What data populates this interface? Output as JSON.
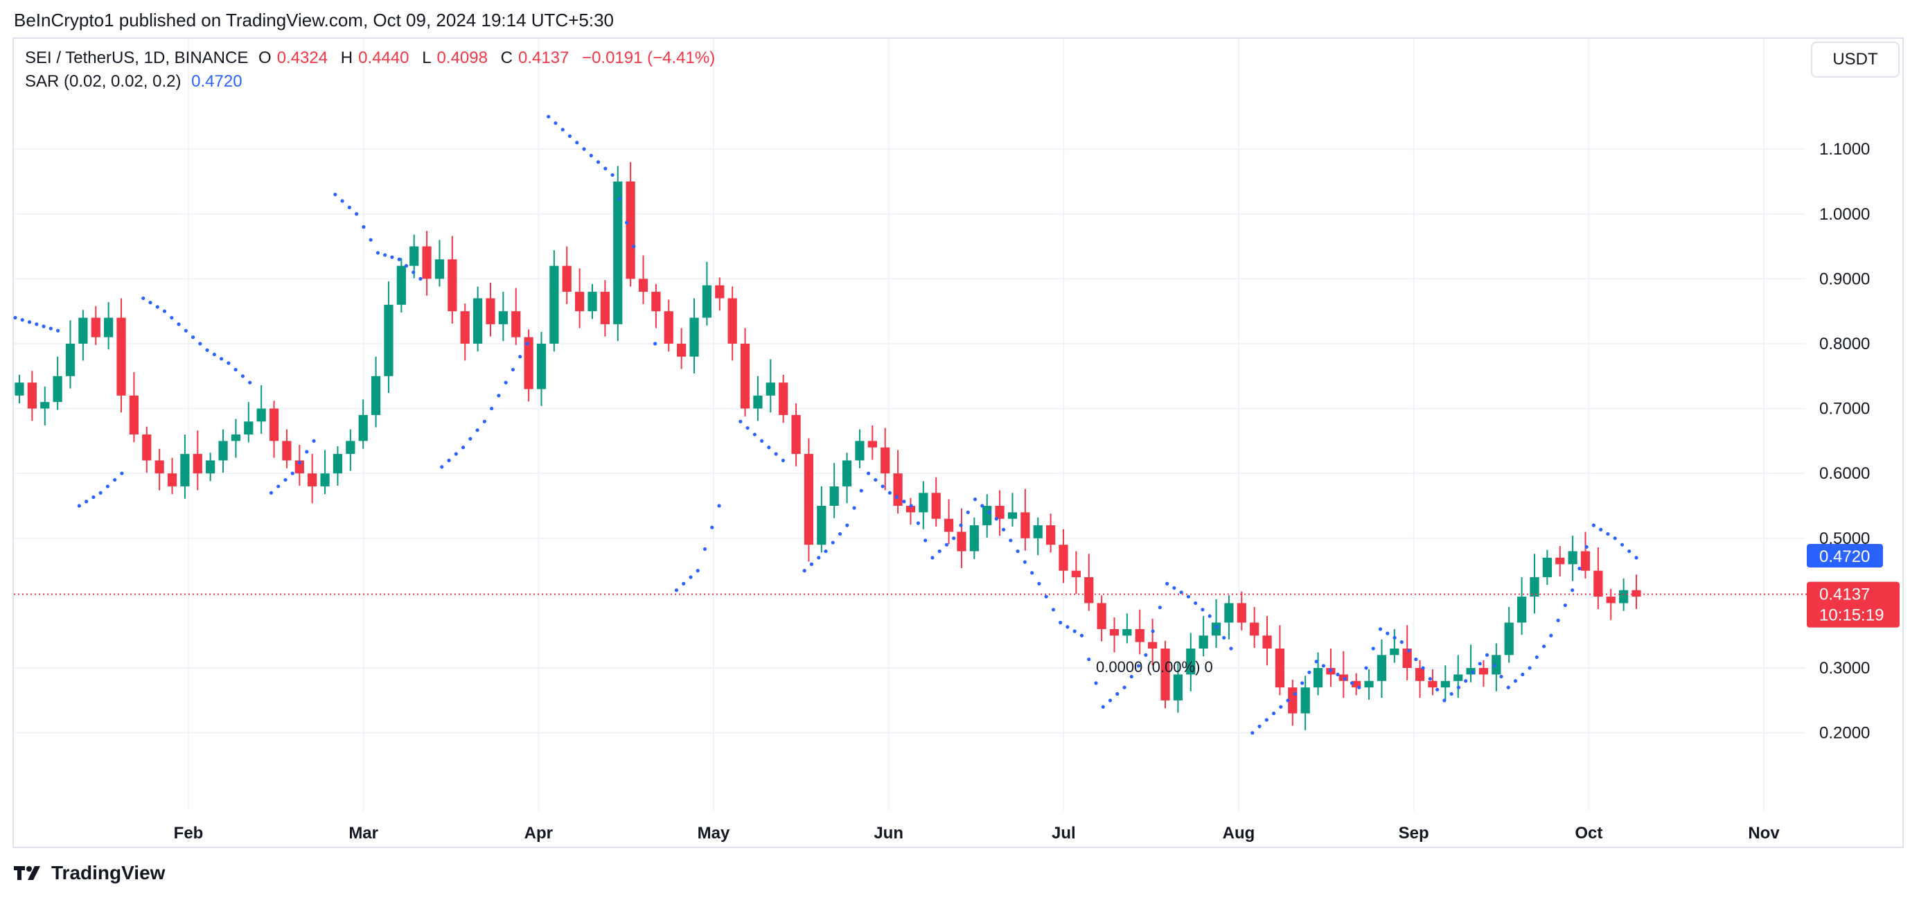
{
  "header": {
    "publisher_line": "BeInCrypto1 published on TradingView.com, Oct 09, 2024 19:14 UTC+5:30"
  },
  "legend": {
    "symbol_line": "SEI / TetherUS, 1D, BINANCE",
    "o_label": "O",
    "o_value": "0.4324",
    "h_label": "H",
    "h_value": "0.4440",
    "l_label": "L",
    "l_value": "0.4098",
    "c_label": "C",
    "c_value": "0.4137",
    "change": "−0.0191 (−4.41%)",
    "sar_label": "SAR (0.02, 0.02, 0.2)",
    "sar_value": "0.4720"
  },
  "currency_button": "USDT",
  "footer": {
    "brand": "TradingView"
  },
  "colors": {
    "up": "#089981",
    "down": "#f23645",
    "sar": "#2962ff",
    "grid": "#f0f3fa",
    "price_line": "#f23645"
  },
  "chart_data": {
    "type": "candlestick",
    "symbol": "SEI / TetherUS",
    "interval": "1D",
    "exchange": "BINANCE",
    "x_labels": [
      "Feb",
      "Mar",
      "Apr",
      "May",
      "Jun",
      "Jul",
      "Aug",
      "Sep",
      "Oct",
      "Nov"
    ],
    "y_ticks": [
      "1.1000",
      "1.0000",
      "0.9000",
      "0.8000",
      "0.7000",
      "0.6000",
      "0.5000",
      "0.3000",
      "0.2000"
    ],
    "ylim": [
      0.08,
      1.27
    ],
    "last_price": {
      "value": 0.4137,
      "label": "0.4137",
      "countdown": "10:15:19"
    },
    "sar_last": {
      "value": 0.472,
      "label": "0.4720"
    },
    "measure_label": "0.0000 (0.00%) 0",
    "grid": true,
    "series": [
      {
        "name": "SEI / TetherUS",
        "values": [
          0.74,
          0.7,
          0.71,
          0.75,
          0.8,
          0.84,
          0.81,
          0.84,
          0.72,
          0.66,
          0.62,
          0.6,
          0.58,
          0.63,
          0.6,
          0.62,
          0.65,
          0.66,
          0.68,
          0.7,
          0.65,
          0.62,
          0.6,
          0.58,
          0.6,
          0.63,
          0.65,
          0.69,
          0.75,
          0.86,
          0.92,
          0.95,
          0.9,
          0.93,
          0.85,
          0.8,
          0.87,
          0.83,
          0.85,
          0.81,
          0.73,
          0.8,
          0.92,
          0.88,
          0.85,
          0.88,
          0.83,
          1.05,
          0.9,
          0.88,
          0.85,
          0.8,
          0.78,
          0.84,
          0.89,
          0.87,
          0.8,
          0.7,
          0.72,
          0.74,
          0.69,
          0.63,
          0.49,
          0.55,
          0.58,
          0.62,
          0.65,
          0.64,
          0.6,
          0.55,
          0.54,
          0.57,
          0.53,
          0.51,
          0.48,
          0.52,
          0.55,
          0.53,
          0.54,
          0.5,
          0.52,
          0.49,
          0.45,
          0.44,
          0.4,
          0.36,
          0.35,
          0.36,
          0.34,
          0.33,
          0.25,
          0.29,
          0.33,
          0.35,
          0.37,
          0.4,
          0.37,
          0.35,
          0.33,
          0.27,
          0.23,
          0.27,
          0.3,
          0.29,
          0.28,
          0.27,
          0.28,
          0.32,
          0.33,
          0.3,
          0.28,
          0.27,
          0.28,
          0.29,
          0.3,
          0.29,
          0.32,
          0.37,
          0.41,
          0.44,
          0.47,
          0.46,
          0.48,
          0.45,
          0.41,
          0.4,
          0.42,
          0.41
        ]
      },
      {
        "name": "SAR (0.02, 0.02, 0.2)",
        "values": [
          0.84,
          0.83,
          0.82,
          0.55,
          0.57,
          0.6,
          0.87,
          0.85,
          0.82,
          0.79,
          0.77,
          0.74,
          0.57,
          0.6,
          0.65,
          1.03,
          1.0,
          0.94,
          0.93,
          0.9,
          0.61,
          0.64,
          0.68,
          0.74,
          0.8,
          1.15,
          1.12,
          1.09,
          1.06,
          0.95,
          0.8,
          0.42,
          0.45,
          0.55,
          0.68,
          0.65,
          0.62,
          0.45,
          0.48,
          0.52,
          0.6,
          0.57,
          0.55,
          0.47,
          0.5,
          0.56,
          0.53,
          0.48,
          0.43,
          0.37,
          0.35,
          0.24,
          0.27,
          0.32,
          0.43,
          0.41,
          0.38,
          0.33,
          0.2,
          0.23,
          0.26,
          0.31,
          0.29,
          0.27,
          0.36,
          0.34,
          0.3,
          0.25,
          0.28,
          0.32,
          0.27,
          0.3,
          0.35,
          0.42,
          0.52,
          0.5,
          0.47
        ]
      }
    ]
  }
}
